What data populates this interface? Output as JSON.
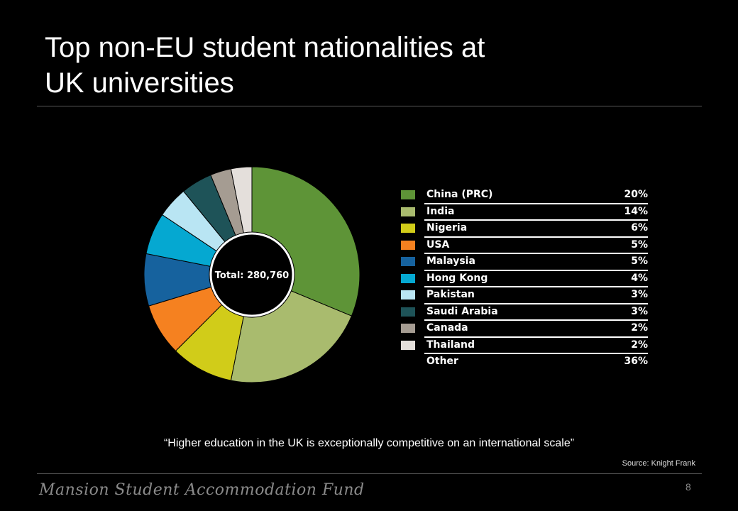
{
  "slide": {
    "title_line1": "Top non-EU student nationalities at",
    "title_line2": "UK universities",
    "quote": "“Higher education in the UK is exceptionally competitive on an international scale”",
    "source": "Source: Knight Frank",
    "brand": "Mansion Student Accommodation Fund",
    "page_number": "8"
  },
  "chart_data": {
    "type": "pie",
    "style": "donut",
    "center_label": "Total: 280,760",
    "legend_placement": "right",
    "slices": [
      {
        "label": "China (PRC)",
        "value": 20,
        "value_label": "20%",
        "color": "#5e9437"
      },
      {
        "label": "India",
        "value": 14,
        "value_label": "14%",
        "color": "#a9bb6e"
      },
      {
        "label": "Nigeria",
        "value": 6,
        "value_label": "6%",
        "color": "#d1cc19"
      },
      {
        "label": "USA",
        "value": 5,
        "value_label": "5%",
        "color": "#f58120"
      },
      {
        "label": "Malaysia",
        "value": 5,
        "value_label": "5%",
        "color": "#16629e"
      },
      {
        "label": "Hong Kong",
        "value": 4,
        "value_label": "4%",
        "color": "#05a8d1"
      },
      {
        "label": "Pakistan",
        "value": 3,
        "value_label": "3%",
        "color": "#b9e5f3"
      },
      {
        "label": "Saudi Arabia",
        "value": 3,
        "value_label": "3%",
        "color": "#1e5358"
      },
      {
        "label": "Canada",
        "value": 2,
        "value_label": "2%",
        "color": "#a59c92"
      },
      {
        "label": "Thailand",
        "value": 2,
        "value_label": "2%",
        "color": "#e4dfdb"
      },
      {
        "label": "Other",
        "value": 36,
        "value_label": "36%",
        "color": null
      }
    ]
  }
}
